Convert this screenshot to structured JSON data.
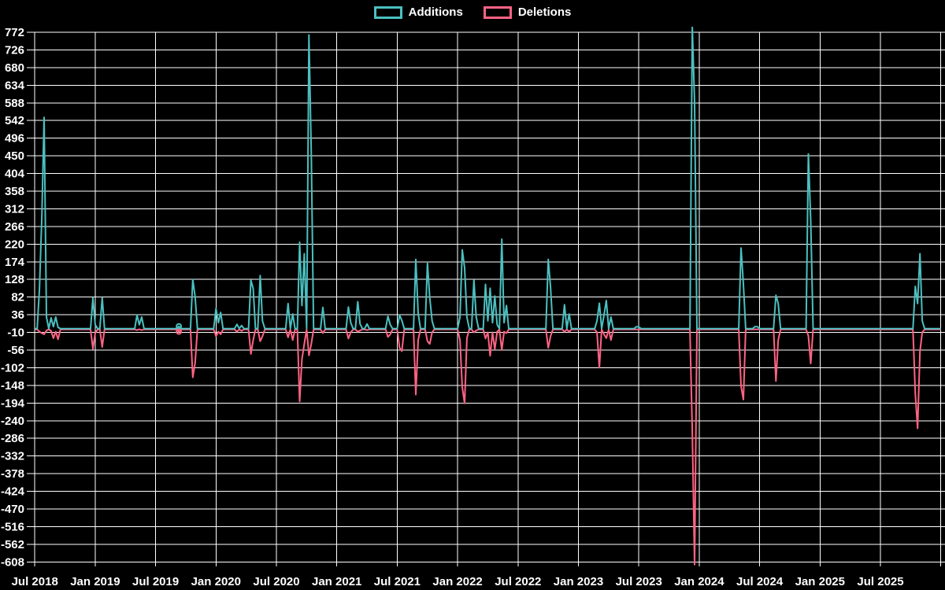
{
  "legend": {
    "additions_label": "Additions",
    "deletions_label": "Deletions"
  },
  "colors": {
    "background": "#000000",
    "grid": "#ffffff",
    "text": "#ffffff",
    "additions": "#4bc0c0",
    "deletions": "#ff6384"
  },
  "chart_data": {
    "type": "line",
    "title": "",
    "xlabel": "",
    "ylabel": "",
    "legend_position": "top",
    "grid": true,
    "y_min": -608,
    "y_max": 772,
    "y_step": 46,
    "y_ticks": [
      772,
      726,
      680,
      634,
      588,
      542,
      496,
      450,
      404,
      358,
      312,
      266,
      220,
      174,
      128,
      82,
      36,
      -10,
      -56,
      -102,
      -148,
      -194,
      -240,
      -286,
      -332,
      -378,
      -424,
      -470,
      -516,
      -562,
      -608
    ],
    "x_tick_labels": [
      "Jul 2018",
      "Jan 2019",
      "Jul 2019",
      "Jan 2020",
      "Jul 2020",
      "Jan 2021",
      "Jul 2021",
      "Jan 2022",
      "Jul 2022",
      "Jan 2023",
      "Jul 2023",
      "Jan 2024",
      "Jul 2024",
      "Jan 2025",
      "Jul 2025"
    ],
    "series": [
      {
        "name": "Additions",
        "color": "#4bc0c0"
      },
      {
        "name": "Deletions",
        "color": "#ff6384"
      }
    ],
    "weeks_start": "Jul 2018",
    "weeks_total": 390,
    "points_format": [
      "week_index",
      "additions",
      "deletions"
    ],
    "points": [
      [
        2,
        103,
        -8
      ],
      [
        3,
        290,
        -12
      ],
      [
        4,
        550,
        -15
      ],
      [
        5,
        30,
        -5
      ],
      [
        7,
        28,
        -6
      ],
      [
        8,
        5,
        -25
      ],
      [
        9,
        30,
        -8
      ],
      [
        10,
        3,
        -28
      ],
      [
        25,
        80,
        -53
      ],
      [
        26,
        10,
        -12
      ],
      [
        29,
        80,
        -48
      ],
      [
        44,
        35,
        -4
      ],
      [
        45,
        10,
        -2
      ],
      [
        46,
        30,
        -4
      ],
      [
        62,
        6,
        -8
      ],
      [
        68,
        128,
        -127
      ],
      [
        69,
        82,
        -89
      ],
      [
        78,
        52,
        -20
      ],
      [
        79,
        15,
        -8
      ],
      [
        80,
        42,
        -15
      ],
      [
        87,
        11,
        -8
      ],
      [
        89,
        8,
        -6
      ],
      [
        93,
        126,
        -66
      ],
      [
        94,
        104,
        -30
      ],
      [
        97,
        138,
        -33
      ],
      [
        98,
        20,
        -20
      ],
      [
        109,
        65,
        -23
      ],
      [
        111,
        38,
        -30
      ],
      [
        114,
        225,
        -190
      ],
      [
        115,
        60,
        -80
      ],
      [
        116,
        195,
        -40
      ],
      [
        118,
        765,
        -70
      ],
      [
        119,
        455,
        -40
      ],
      [
        124,
        55,
        -12
      ],
      [
        135,
        56,
        -26
      ],
      [
        136,
        15,
        -10
      ],
      [
        139,
        70,
        -8
      ],
      [
        140,
        12,
        -5
      ],
      [
        143,
        12,
        -4
      ],
      [
        152,
        32,
        -22
      ],
      [
        153,
        10,
        -15
      ],
      [
        157,
        35,
        -50
      ],
      [
        158,
        21,
        -59
      ],
      [
        164,
        180,
        -172
      ],
      [
        165,
        40,
        -30
      ],
      [
        169,
        170,
        -33
      ],
      [
        170,
        81,
        -40
      ],
      [
        171,
        20,
        -10
      ],
      [
        183,
        30,
        -30
      ],
      [
        184,
        205,
        -153
      ],
      [
        185,
        158,
        -195
      ],
      [
        186,
        30,
        -25
      ],
      [
        189,
        126,
        -10
      ],
      [
        190,
        30,
        -5
      ],
      [
        194,
        115,
        -26
      ],
      [
        195,
        20,
        -10
      ],
      [
        196,
        105,
        -71
      ],
      [
        197,
        15,
        -10
      ],
      [
        198,
        85,
        -54
      ],
      [
        199,
        10,
        -8
      ],
      [
        201,
        233,
        -56
      ],
      [
        202,
        15,
        -8
      ],
      [
        203,
        60,
        -12
      ],
      [
        221,
        180,
        -50
      ],
      [
        222,
        108,
        -20
      ],
      [
        228,
        62,
        -8
      ],
      [
        230,
        38,
        -8
      ],
      [
        242,
        20,
        -10
      ],
      [
        243,
        66,
        -102
      ],
      [
        245,
        35,
        -15
      ],
      [
        246,
        73,
        -25
      ],
      [
        248,
        30,
        -30
      ],
      [
        259,
        5,
        0
      ],
      [
        260,
        4,
        0
      ],
      [
        283,
        785,
        -267
      ],
      [
        284,
        590,
        -615
      ],
      [
        304,
        210,
        -150
      ],
      [
        305,
        115,
        -185
      ],
      [
        310,
        5,
        -2
      ],
      [
        311,
        5,
        -2
      ],
      [
        319,
        87,
        -137
      ],
      [
        320,
        65,
        -30
      ],
      [
        333,
        455,
        -19
      ],
      [
        334,
        280,
        -91
      ],
      [
        379,
        110,
        -170
      ],
      [
        380,
        65,
        -260
      ],
      [
        381,
        195,
        -60
      ],
      [
        382,
        20,
        -10
      ]
    ],
    "isolated_marker": {
      "week": 62,
      "additions": 6,
      "deletions": -8
    }
  }
}
